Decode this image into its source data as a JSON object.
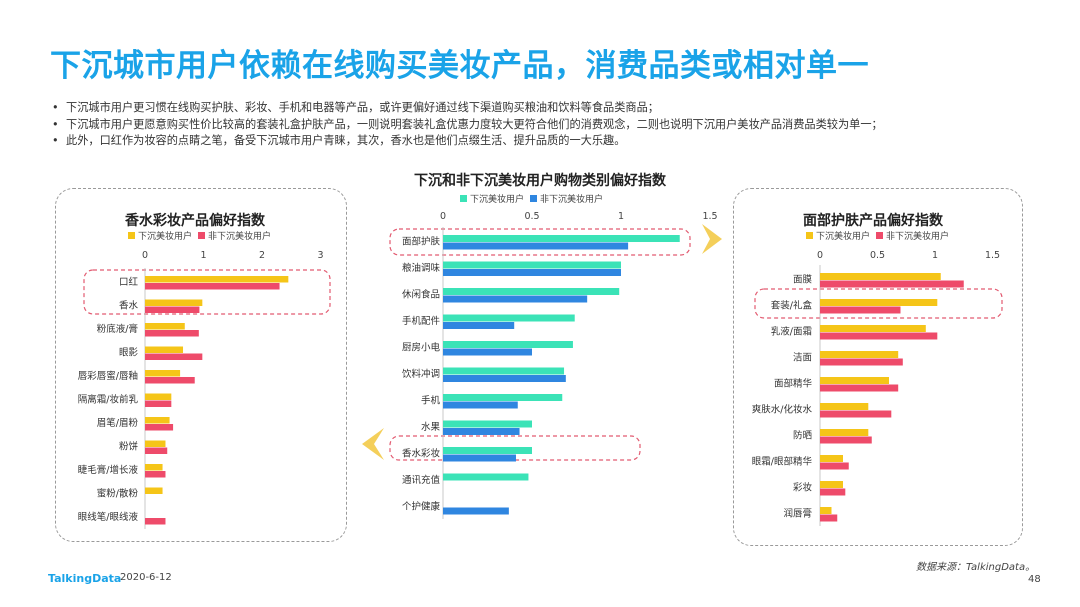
{
  "title": "下沉城市用户依赖在线购买美妆产品，消费品类或相对单一",
  "bullets": [
    "下沉城市用户更习惯在线购买护肤、彩妆、手机和电器等产品，或许更偏好通过线下渠道购买粮油和饮料等食品类商品；",
    "下沉城市用户更愿意购买性价比较高的套装礼盒护肤产品，一则说明套装礼盒优惠力度较大更符合他们的消费观念，二则也说明下沉用户美妆产品消费品类较为单一；",
    "此外，口红作为妆容的点睛之笔，备受下沉城市用户青睐，其次，香水也是他们点缀生活、提升品质的一大乐趣。"
  ],
  "footer": {
    "logo": "TalkingData",
    "date": "2020-6-12",
    "source": "数据来源：TalkingData。",
    "page": "48"
  },
  "colors": {
    "yellow": "#f5c518",
    "red": "#ee4b6a",
    "teal": "#3be3b7",
    "blue": "#2f86e0",
    "title": "#1aa3e8"
  },
  "chart_data": [
    {
      "type": "bar",
      "title": "香水彩妆产品偏好指数",
      "categories": [
        "口红",
        "香水",
        "粉底液/膏",
        "眼影",
        "唇彩唇蜜/唇釉",
        "隔离霜/妆前乳",
        "眉笔/眉粉",
        "粉饼",
        "睫毛膏/增长液",
        "蜜粉/散粉",
        "眼线笔/眼线液"
      ],
      "series": [
        {
          "name": "下沉美妆用户",
          "values": [
            2.45,
            0.98,
            0.68,
            0.65,
            0.6,
            0.45,
            0.42,
            0.35,
            0.3,
            0.3,
            0.0
          ]
        },
        {
          "name": "非下沉美妆用户",
          "values": [
            2.3,
            0.93,
            0.92,
            0.98,
            0.85,
            0.45,
            0.48,
            0.38,
            0.35,
            0.0,
            0.35
          ]
        }
      ],
      "xticks": [
        0,
        1,
        2,
        3
      ],
      "xlim": [
        0,
        3
      ],
      "highlight": [
        "口红",
        "香水"
      ],
      "legend": "top-left"
    },
    {
      "type": "bar",
      "title": "下沉和非下沉美妆用户购物类别偏好指数",
      "categories": [
        "面部护肤",
        "粮油调味",
        "休闲食品",
        "手机配件",
        "厨房小电",
        "饮料冲调",
        "手机",
        "水果",
        "香水彩妆",
        "通讯充值",
        "个护健康"
      ],
      "series": [
        {
          "name": "下沉美妆用户",
          "values": [
            1.33,
            1.0,
            0.99,
            0.74,
            0.73,
            0.68,
            0.67,
            0.5,
            0.5,
            0.48,
            0.0
          ]
        },
        {
          "name": "非下沉美妆用户",
          "values": [
            1.04,
            1.0,
            0.81,
            0.4,
            0.5,
            0.69,
            0.42,
            0.43,
            0.41,
            0.0,
            0.37
          ]
        }
      ],
      "xticks": [
        0,
        0.5,
        1,
        1.5
      ],
      "xlim": [
        0,
        1.5
      ],
      "highlight": [
        "面部护肤",
        "香水彩妆"
      ],
      "legend": "top-left"
    },
    {
      "type": "bar",
      "title": "面部护肤产品偏好指数",
      "categories": [
        "面膜",
        "套装/礼盒",
        "乳液/面霜",
        "洁面",
        "面部精华",
        "爽肤水/化妆水",
        "防晒",
        "眼霜/眼部精华",
        "彩妆",
        "润唇膏"
      ],
      "series": [
        {
          "name": "下沉美妆用户",
          "values": [
            1.05,
            1.02,
            0.92,
            0.68,
            0.6,
            0.42,
            0.42,
            0.2,
            0.2,
            0.1
          ]
        },
        {
          "name": "非下沉美妆用户",
          "values": [
            1.25,
            0.7,
            1.02,
            0.72,
            0.68,
            0.62,
            0.45,
            0.25,
            0.22,
            0.15
          ]
        }
      ],
      "xticks": [
        0,
        0.5,
        1,
        1.5
      ],
      "xlim": [
        0,
        1.5
      ],
      "highlight": [
        "套装/礼盒"
      ],
      "legend": "top-left"
    }
  ]
}
